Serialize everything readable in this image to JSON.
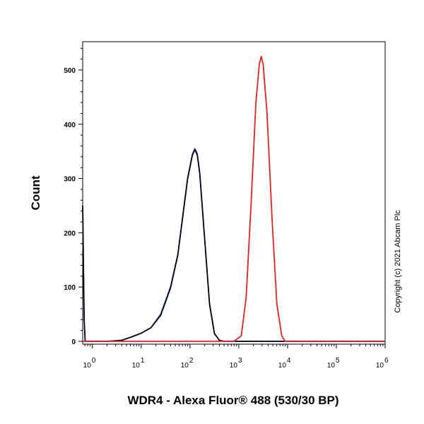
{
  "chart_data": {
    "type": "line",
    "xlabel": "WDR4 - Alexa Fluor® 488 (530/30 BP)",
    "ylabel": "Count",
    "xscale": "log",
    "xlim": [
      -0.2,
      6
    ],
    "ylim": [
      0,
      560
    ],
    "x_ticks": [
      {
        "base": "10",
        "exp": "0",
        "value": 0
      },
      {
        "base": "10",
        "exp": "1",
        "value": 1
      },
      {
        "base": "10",
        "exp": "2",
        "value": 2
      },
      {
        "base": "10",
        "exp": "3",
        "value": 3
      },
      {
        "base": "10",
        "exp": "4",
        "value": 4
      },
      {
        "base": "10",
        "exp": "5",
        "value": 5
      },
      {
        "base": "10",
        "exp": "6",
        "value": 6
      }
    ],
    "y_ticks": [
      "0",
      "100",
      "200",
      "300",
      "400",
      "500"
    ],
    "grid": false,
    "series": [
      {
        "color": "#2233cc",
        "points": [
          [
            -0.2,
            250
          ],
          [
            -0.17,
            40
          ],
          [
            -0.15,
            0
          ],
          [
            0.3,
            0
          ],
          [
            0.6,
            2
          ],
          [
            0.8,
            8
          ],
          [
            1.0,
            15
          ],
          [
            1.2,
            25
          ],
          [
            1.4,
            50
          ],
          [
            1.6,
            100
          ],
          [
            1.75,
            160
          ],
          [
            1.85,
            230
          ],
          [
            1.95,
            300
          ],
          [
            2.05,
            345
          ],
          [
            2.1,
            355
          ],
          [
            2.15,
            345
          ],
          [
            2.2,
            310
          ],
          [
            2.3,
            190
          ],
          [
            2.4,
            70
          ],
          [
            2.5,
            15
          ],
          [
            2.6,
            2
          ],
          [
            2.7,
            0
          ],
          [
            6,
            0
          ]
        ]
      },
      {
        "color": "#000000",
        "points": [
          [
            -0.2,
            250
          ],
          [
            -0.17,
            40
          ],
          [
            -0.15,
            0
          ],
          [
            0.3,
            0
          ],
          [
            0.6,
            2
          ],
          [
            0.8,
            8
          ],
          [
            1.0,
            15
          ],
          [
            1.2,
            25
          ],
          [
            1.4,
            48
          ],
          [
            1.6,
            98
          ],
          [
            1.75,
            158
          ],
          [
            1.85,
            228
          ],
          [
            1.95,
            298
          ],
          [
            2.05,
            343
          ],
          [
            2.1,
            353
          ],
          [
            2.15,
            343
          ],
          [
            2.2,
            308
          ],
          [
            2.3,
            188
          ],
          [
            2.4,
            68
          ],
          [
            2.5,
            14
          ],
          [
            2.6,
            2
          ],
          [
            2.7,
            0
          ],
          [
            6,
            0
          ]
        ]
      },
      {
        "color": "#dd2222",
        "points": [
          [
            -0.2,
            0
          ],
          [
            2.9,
            0
          ],
          [
            3.05,
            10
          ],
          [
            3.15,
            80
          ],
          [
            3.25,
            250
          ],
          [
            3.35,
            440
          ],
          [
            3.42,
            510
          ],
          [
            3.46,
            525
          ],
          [
            3.5,
            510
          ],
          [
            3.58,
            420
          ],
          [
            3.68,
            230
          ],
          [
            3.78,
            70
          ],
          [
            3.88,
            10
          ],
          [
            3.95,
            0
          ],
          [
            6,
            0
          ]
        ]
      }
    ]
  },
  "copyright": "Copyright (c) 2021 Abcam Plc"
}
